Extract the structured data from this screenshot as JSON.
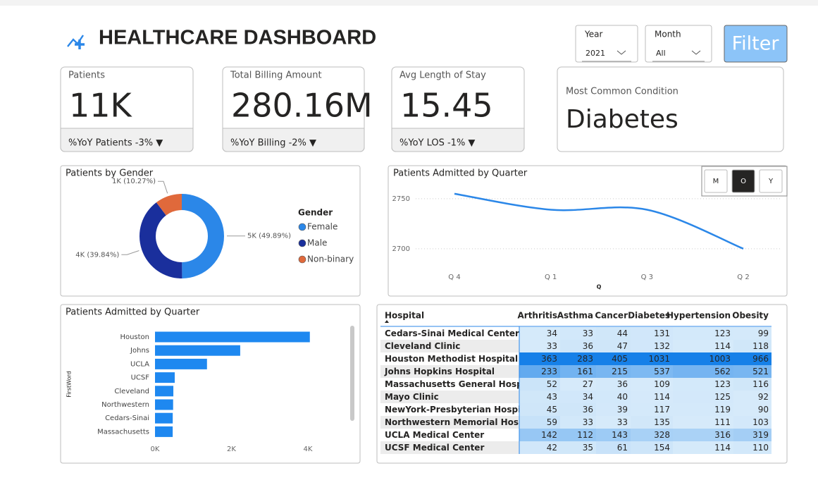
{
  "header": {
    "title": "HEALTHCARE DASHBOARD",
    "filters": [
      {
        "label": "Year",
        "value": "2021"
      },
      {
        "label": "Month",
        "value": "All"
      }
    ],
    "button": "Filter"
  },
  "kpis": [
    {
      "label": "Patients",
      "value": "11K",
      "footer": "%YoY Patients -3% ▼"
    },
    {
      "label": "Total Billing Amount",
      "value": "280.16M",
      "footer": "%YoY Billing -2% ▼"
    },
    {
      "label": "Avg Length of Stay",
      "value": "15.45",
      "footer": "%YoY LOS -1% ▼"
    }
  ],
  "condition": {
    "label": "Most Common Condition",
    "value": "Diabetes"
  },
  "chart_data": [
    {
      "type": "pie",
      "title": "Patients by Gender",
      "legend_title": "Gender",
      "categories": [
        "Female",
        "Male",
        "Non-binary"
      ],
      "values": [
        49.89,
        39.84,
        10.27
      ],
      "value_labels": [
        "5K (49.89%)",
        "4K (39.84%)",
        "1K (10.27%)"
      ],
      "colors": [
        "#2b87e8",
        "#1a2f9c",
        "#e0693b"
      ]
    },
    {
      "type": "line",
      "title": "Patients Admitted by Quarter",
      "x_label": "Q",
      "categories": [
        "Q 4",
        "Q 1",
        "Q 3",
        "Q 2"
      ],
      "values": [
        2755,
        2739,
        2739,
        2700
      ],
      "ylim": [
        2690,
        2768
      ],
      "yticks": [
        2700,
        2750
      ],
      "grid": true,
      "color": "#2b87e8",
      "buttons": [
        "M",
        "O",
        "Y"
      ]
    },
    {
      "type": "bar",
      "orientation": "horizontal",
      "title": "Patients Admitted by Quarter",
      "y_label": "FirstWord",
      "categories": [
        "Houston",
        "Johns",
        "UCLA",
        "UCSF",
        "Cleveland",
        "Northwestern",
        "Cedars-Sinai",
        "Massachusetts"
      ],
      "values": [
        4051,
        2229,
        1360,
        516,
        480,
        474,
        464,
        463
      ],
      "xlim": [
        0,
        4400
      ],
      "xticks": [
        {
          "value": 0,
          "label": "0K"
        },
        {
          "value": 2000,
          "label": "2K"
        },
        {
          "value": 4000,
          "label": "4K"
        }
      ],
      "color": "#1e88f0"
    }
  ],
  "table": {
    "columns": [
      "Hospital",
      "Arthritis",
      "Asthma",
      "Cancer",
      "Diabetes",
      "Hypertension",
      "Obesity"
    ],
    "rows": [
      [
        "Cedars-Sinai Medical Center",
        34,
        33,
        44,
        131,
        123,
        99
      ],
      [
        "Cleveland Clinic",
        33,
        36,
        47,
        132,
        114,
        118
      ],
      [
        "Houston Methodist Hospital",
        363,
        283,
        405,
        1031,
        1003,
        966
      ],
      [
        "Johns Hopkins Hospital",
        233,
        161,
        215,
        537,
        562,
        521
      ],
      [
        "Massachusetts General Hospital",
        52,
        27,
        36,
        109,
        123,
        116
      ],
      [
        "Mayo Clinic",
        43,
        34,
        40,
        114,
        125,
        92
      ],
      [
        "NewYork-Presbyterian Hospital",
        45,
        36,
        39,
        117,
        119,
        90
      ],
      [
        "Northwestern Memorial Hospital",
        59,
        33,
        33,
        135,
        111,
        103
      ],
      [
        "UCLA Medical Center",
        142,
        112,
        143,
        328,
        316,
        319
      ],
      [
        "UCSF Medical Center",
        42,
        35,
        61,
        154,
        114,
        110
      ]
    ]
  }
}
